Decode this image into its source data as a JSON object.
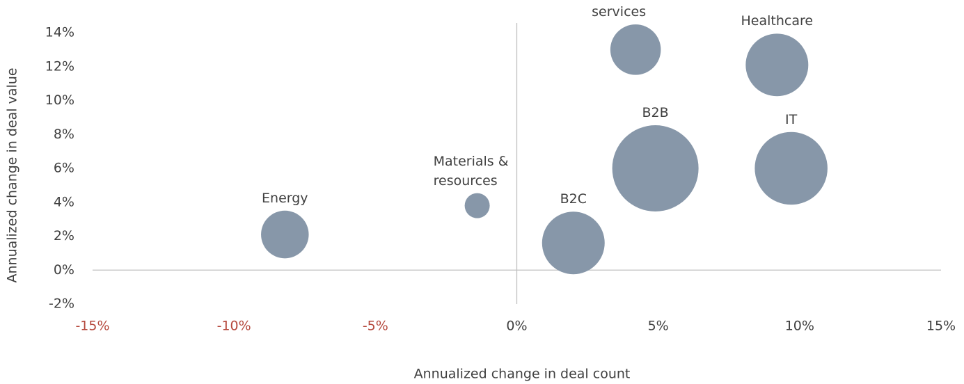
{
  "chart_data": {
    "type": "bubble",
    "x_label": "Annualized change in deal count",
    "y_label": "Annualized change in deal value",
    "series": [
      {
        "name": null,
        "color": "#8797a9",
        "labels": [
          "Energy",
          "Materials & resources",
          "B2C",
          "Financial services",
          "B2B",
          "Healthcare",
          "IT"
        ],
        "x": [
          -8.2,
          -1.4,
          2.0,
          4.2,
          4.9,
          9.2,
          9.7
        ],
        "values": [
          2.1,
          3.8,
          1.6,
          13.0,
          6.0,
          12.1,
          6.0
        ],
        "sizes": [
          11.6,
          3.2,
          20,
          13,
          38,
          20,
          27
        ]
      }
    ],
    "xlim": [
      -15,
      15
    ],
    "xticks": [
      {
        "value": -15,
        "label": "-15%"
      },
      {
        "value": -10,
        "label": "-10%"
      },
      {
        "value": -5,
        "label": "-5%"
      },
      {
        "value": 0,
        "label": "0%"
      },
      {
        "value": 5,
        "label": "5%"
      },
      {
        "value": 10,
        "label": "10%"
      },
      {
        "value": 15,
        "label": "15%"
      }
    ],
    "negative_tick_color": "#b5483c",
    "ylim": [
      -2,
      14
    ],
    "yticks": [
      {
        "value": -2,
        "label": "-2%"
      },
      {
        "value": 0,
        "label": "0%"
      },
      {
        "value": 2,
        "label": "2%"
      },
      {
        "value": 4,
        "label": "4%"
      },
      {
        "value": 6,
        "label": "6%"
      },
      {
        "value": 8,
        "label": "8%"
      },
      {
        "value": 10,
        "label": "10%"
      },
      {
        "value": 12,
        "label": "12%"
      },
      {
        "value": 14,
        "label": "14%"
      }
    ]
  }
}
